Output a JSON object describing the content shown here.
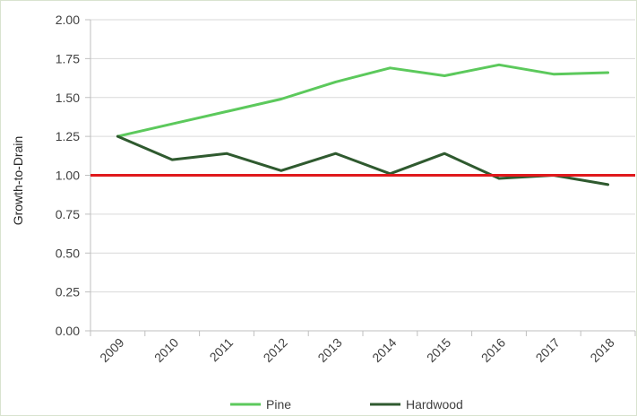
{
  "chart_data": {
    "type": "line",
    "title": "",
    "xlabel": "",
    "ylabel": "Growth-to-Drain",
    "categories": [
      "2009",
      "2010",
      "2011",
      "2012",
      "2013",
      "2014",
      "2015",
      "2016",
      "2017",
      "2018"
    ],
    "ylim": [
      0,
      2
    ],
    "yticks": [
      "0.00",
      "0.25",
      "0.50",
      "0.75",
      "1.00",
      "1.25",
      "1.50",
      "1.75",
      "2.00"
    ],
    "grid": true,
    "legend_position": "bottom",
    "series": [
      {
        "name": "Pine",
        "color": "#5cc95c",
        "values": [
          1.25,
          1.33,
          1.41,
          1.49,
          1.6,
          1.69,
          1.64,
          1.71,
          1.65,
          1.66
        ]
      },
      {
        "name": "Hardwood",
        "color": "#2f5a2f",
        "values": [
          1.25,
          1.1,
          1.14,
          1.03,
          1.14,
          1.01,
          1.14,
          0.98,
          1.0,
          0.94
        ]
      }
    ],
    "reference_line": {
      "value": 1.0,
      "color": "#e0191c"
    }
  }
}
